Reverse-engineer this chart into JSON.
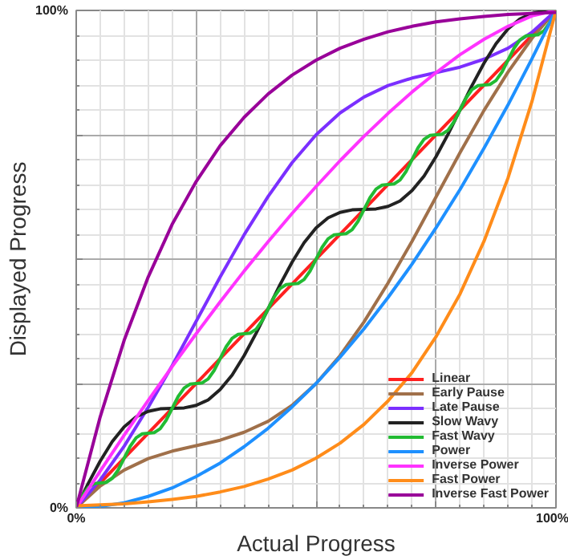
{
  "chart_data": {
    "type": "line",
    "xlabel": "Actual Progress",
    "ylabel": "Displayed Progress",
    "xlim": [
      0,
      100
    ],
    "ylim": [
      0,
      100
    ],
    "xticks": [
      {
        "value": 0,
        "label": "0%"
      },
      {
        "value": 25,
        "label": null
      },
      {
        "value": 50,
        "label": null
      },
      {
        "value": 75,
        "label": null
      },
      {
        "value": 100,
        "label": "100%"
      }
    ],
    "yticks": [
      {
        "value": 0,
        "label": "0%"
      },
      {
        "value": 25,
        "label": null
      },
      {
        "value": 50,
        "label": null
      },
      {
        "value": 75,
        "label": null
      },
      {
        "value": 100,
        "label": "100%"
      }
    ],
    "grid": true,
    "legend": "bottom right",
    "marker": "none",
    "line_style": "solid",
    "series": [
      {
        "name": "Linear",
        "color": "#ff2020",
        "x": [
          0,
          100
        ],
        "values": [
          0,
          100
        ]
      },
      {
        "name": "Early Pause",
        "color": "#a0704a",
        "x": [
          0,
          5,
          10,
          15,
          20,
          25,
          30,
          35,
          40,
          45,
          50,
          55,
          60,
          65,
          70,
          75,
          80,
          85,
          90,
          95,
          100
        ],
        "values": [
          0,
          4.4,
          7.6,
          9.9,
          11.4,
          12.5,
          13.6,
          15.2,
          17.4,
          20.6,
          25,
          30.6,
          37.4,
          45.2,
          53.6,
          62.5,
          71.4,
          79.9,
          87.6,
          94.4,
          100
        ]
      },
      {
        "name": "Late Pause",
        "color": "#7b2fff",
        "x": [
          0,
          5,
          10,
          15,
          20,
          25,
          30,
          35,
          40,
          45,
          50,
          55,
          60,
          65,
          70,
          75,
          80,
          85,
          90,
          95,
          100
        ],
        "values": [
          0,
          5.6,
          12.4,
          20.2,
          28.6,
          37.5,
          46.4,
          54.9,
          62.6,
          69.4,
          75,
          79.4,
          82.6,
          84.9,
          86.4,
          87.5,
          88.6,
          90.2,
          92.4,
          95.6,
          100
        ]
      },
      {
        "name": "Slow Wavy",
        "color": "#222222",
        "x": [
          0,
          2.5,
          5,
          7.5,
          10,
          12.5,
          15,
          17.5,
          20,
          22.5,
          25,
          27.5,
          30,
          32.5,
          35,
          37.5,
          40,
          42.5,
          45,
          47.5,
          50,
          52.5,
          55,
          57.5,
          60,
          62.5,
          65,
          67.5,
          70,
          72.5,
          75,
          77.5,
          80,
          82.5,
          85,
          87.5,
          90,
          92.5,
          95,
          97.5,
          100
        ],
        "values": [
          0,
          4.9,
          9.4,
          13.3,
          16.3,
          18.3,
          19.4,
          19.9,
          20,
          20.1,
          20.6,
          21.7,
          23.8,
          26.7,
          30.6,
          35.1,
          40,
          44.9,
          49.4,
          53.3,
          56.3,
          58.3,
          59.4,
          59.9,
          60,
          60.1,
          60.6,
          61.7,
          63.8,
          66.7,
          70.6,
          75.1,
          80,
          84.9,
          89.4,
          93.3,
          96.3,
          98.3,
          99.4,
          99.9,
          100
        ]
      },
      {
        "name": "Fast Wavy",
        "color": "#22bb33",
        "x": [
          0,
          1.25,
          2.5,
          3.75,
          5,
          6.25,
          7.5,
          8.75,
          10,
          11.25,
          12.5,
          13.75,
          15,
          16.25,
          17.5,
          18.75,
          20,
          21.25,
          22.5,
          23.75,
          25,
          26.25,
          27.5,
          28.75,
          30,
          31.25,
          32.5,
          33.75,
          35,
          36.25,
          37.5,
          38.75,
          40,
          41.25,
          42.5,
          43.75,
          45,
          46.25,
          47.5,
          48.75,
          50,
          51.25,
          52.5,
          53.75,
          55,
          56.25,
          57.5,
          58.75,
          60,
          61.25,
          62.5,
          63.75,
          65,
          66.25,
          67.5,
          68.75,
          70,
          71.25,
          72.5,
          73.75,
          75,
          76.25,
          77.5,
          78.75,
          80,
          81.25,
          82.5,
          83.75,
          85,
          86.25,
          87.5,
          88.75,
          90,
          91.25,
          92.5,
          93.75,
          95,
          96.25,
          97.5,
          98.75,
          100
        ],
        "values": [
          0,
          2.38,
          4.1,
          4.88,
          5,
          5.12,
          5.9,
          7.62,
          10,
          12.38,
          14.1,
          14.88,
          15,
          15.12,
          15.9,
          17.62,
          20,
          22.38,
          24.1,
          24.88,
          25,
          25.12,
          25.9,
          27.62,
          30,
          32.38,
          34.1,
          34.88,
          35,
          35.12,
          35.9,
          37.62,
          40,
          42.38,
          44.1,
          44.88,
          45,
          45.12,
          45.9,
          47.62,
          50,
          52.38,
          54.1,
          54.88,
          55,
          55.12,
          55.9,
          57.62,
          60,
          62.38,
          64.1,
          64.88,
          65,
          65.12,
          65.9,
          67.62,
          70,
          72.38,
          74.1,
          74.88,
          75,
          75.12,
          75.9,
          77.62,
          80,
          82.38,
          84.1,
          84.88,
          85,
          85.12,
          85.9,
          87.62,
          90,
          92.38,
          94.1,
          94.88,
          95,
          95.12,
          95.9,
          97.62,
          100
        ]
      },
      {
        "name": "Power",
        "color": "#1e90ff",
        "x": [
          0,
          5,
          10,
          15,
          20,
          25,
          30,
          35,
          40,
          45,
          50,
          55,
          60,
          65,
          70,
          75,
          80,
          85,
          90,
          95,
          100
        ],
        "values": [
          0,
          0.3,
          1,
          2.3,
          4,
          6.3,
          9,
          12.3,
          16,
          20.3,
          25,
          30.3,
          36,
          42.3,
          49,
          56.3,
          64,
          72.3,
          81,
          90.3,
          100
        ]
      },
      {
        "name": "Inverse Power",
        "color": "#ff33ff",
        "x": [
          0,
          5,
          10,
          15,
          20,
          25,
          30,
          35,
          40,
          45,
          50,
          55,
          60,
          65,
          70,
          75,
          80,
          85,
          90,
          95,
          100
        ],
        "values": [
          0,
          7.4,
          14.6,
          21.6,
          28.4,
          35,
          41.4,
          47.6,
          53.5,
          59.2,
          64.6,
          69.8,
          74.7,
          79.3,
          83.6,
          87.5,
          91.1,
          94.2,
          96.8,
          98.9,
          100
        ]
      },
      {
        "name": "Fast Power",
        "color": "#ff8c1a",
        "x": [
          0,
          5,
          10,
          15,
          20,
          25,
          30,
          35,
          40,
          45,
          50,
          55,
          60,
          65,
          70,
          75,
          80,
          85,
          90,
          95,
          100
        ],
        "values": [
          0.4,
          0.6,
          0.8,
          1.2,
          1.7,
          2.3,
          3.2,
          4.3,
          5.8,
          7.6,
          10,
          13,
          16.8,
          21.5,
          27.2,
          34.4,
          43,
          53.6,
          66.3,
          81.7,
          100
        ]
      },
      {
        "name": "Inverse Fast Power",
        "color": "#990099",
        "x": [
          0,
          5,
          10,
          15,
          20,
          25,
          30,
          35,
          40,
          45,
          50,
          55,
          60,
          65,
          70,
          75,
          80,
          85,
          90,
          95,
          100
        ],
        "values": [
          0,
          18.3,
          33.7,
          46.4,
          57,
          65.6,
          72.8,
          78.5,
          83.2,
          87,
          90,
          92.4,
          94.2,
          95.7,
          96.8,
          97.7,
          98.3,
          98.8,
          99.2,
          99.4,
          99.6
        ]
      }
    ]
  }
}
